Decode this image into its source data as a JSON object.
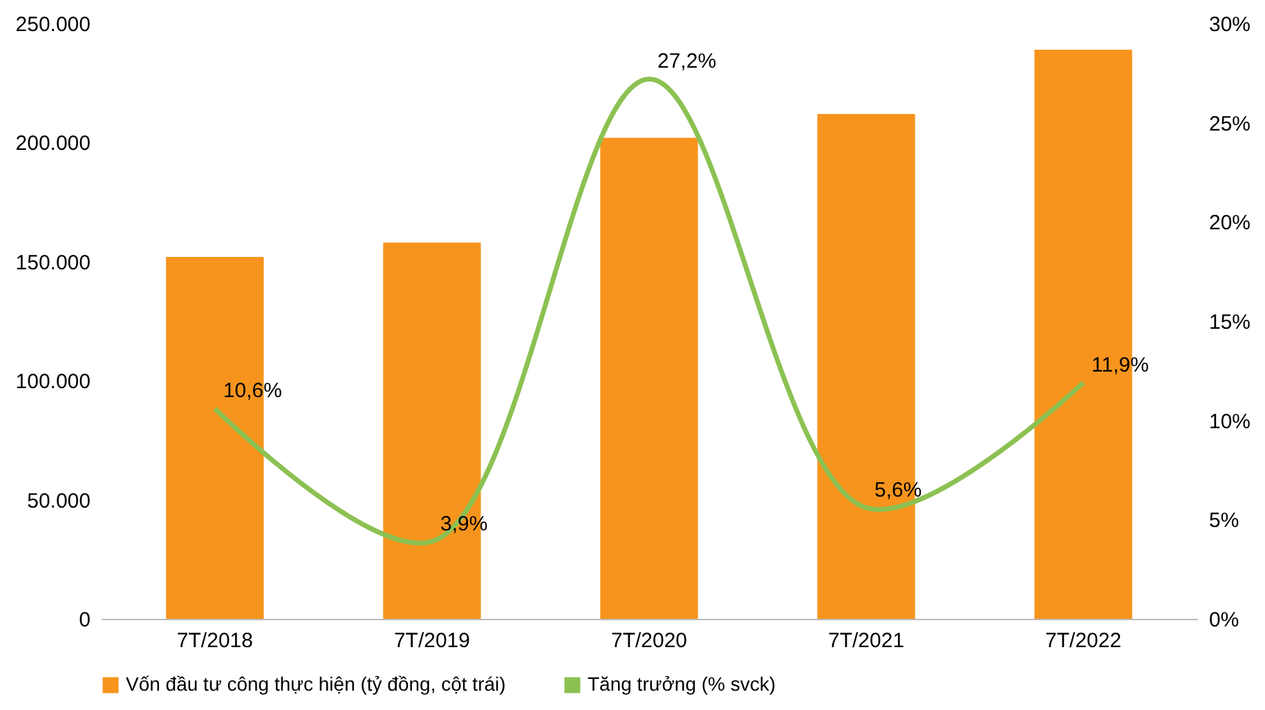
{
  "chart_data": {
    "type": "bar",
    "categories": [
      "7T/2018",
      "7T/2019",
      "7T/2020",
      "7T/2021",
      "7T/2022"
    ],
    "series": [
      {
        "name": "Vốn đầu tư công thực hiện (tỷ đồng, cột trái)",
        "color": "#f7941d",
        "values": [
          152000,
          158000,
          202000,
          212000,
          239000
        ]
      },
      {
        "name": "Tăng trưởng (% svck)",
        "type": "line",
        "axis": "y2",
        "color": "#8cc152",
        "values": [
          10.6,
          3.9,
          27.2,
          5.6,
          11.9
        ],
        "value_labels": [
          "10,6%",
          "3,9%",
          "27,2%",
          "5,6%",
          "11,9%"
        ]
      }
    ],
    "ylim": [
      0,
      250000
    ],
    "yticks": [
      {
        "value": 0,
        "label": "0"
      },
      {
        "value": 50000,
        "label": "50.000"
      },
      {
        "value": 100000,
        "label": "100.000"
      },
      {
        "value": 150000,
        "label": "150.000"
      },
      {
        "value": 200000,
        "label": "200.000"
      },
      {
        "value": 250000,
        "label": "250.000"
      }
    ],
    "y2lim": [
      0,
      30
    ],
    "y2ticks": [
      {
        "value": 0,
        "label": "0%"
      },
      {
        "value": 5,
        "label": "5%"
      },
      {
        "value": 10,
        "label": "10%"
      },
      {
        "value": 15,
        "label": "15%"
      },
      {
        "value": 20,
        "label": "20%"
      },
      {
        "value": 25,
        "label": "25%"
      },
      {
        "value": 30,
        "label": "30%"
      }
    ],
    "legend": "bottom",
    "grid": false
  }
}
